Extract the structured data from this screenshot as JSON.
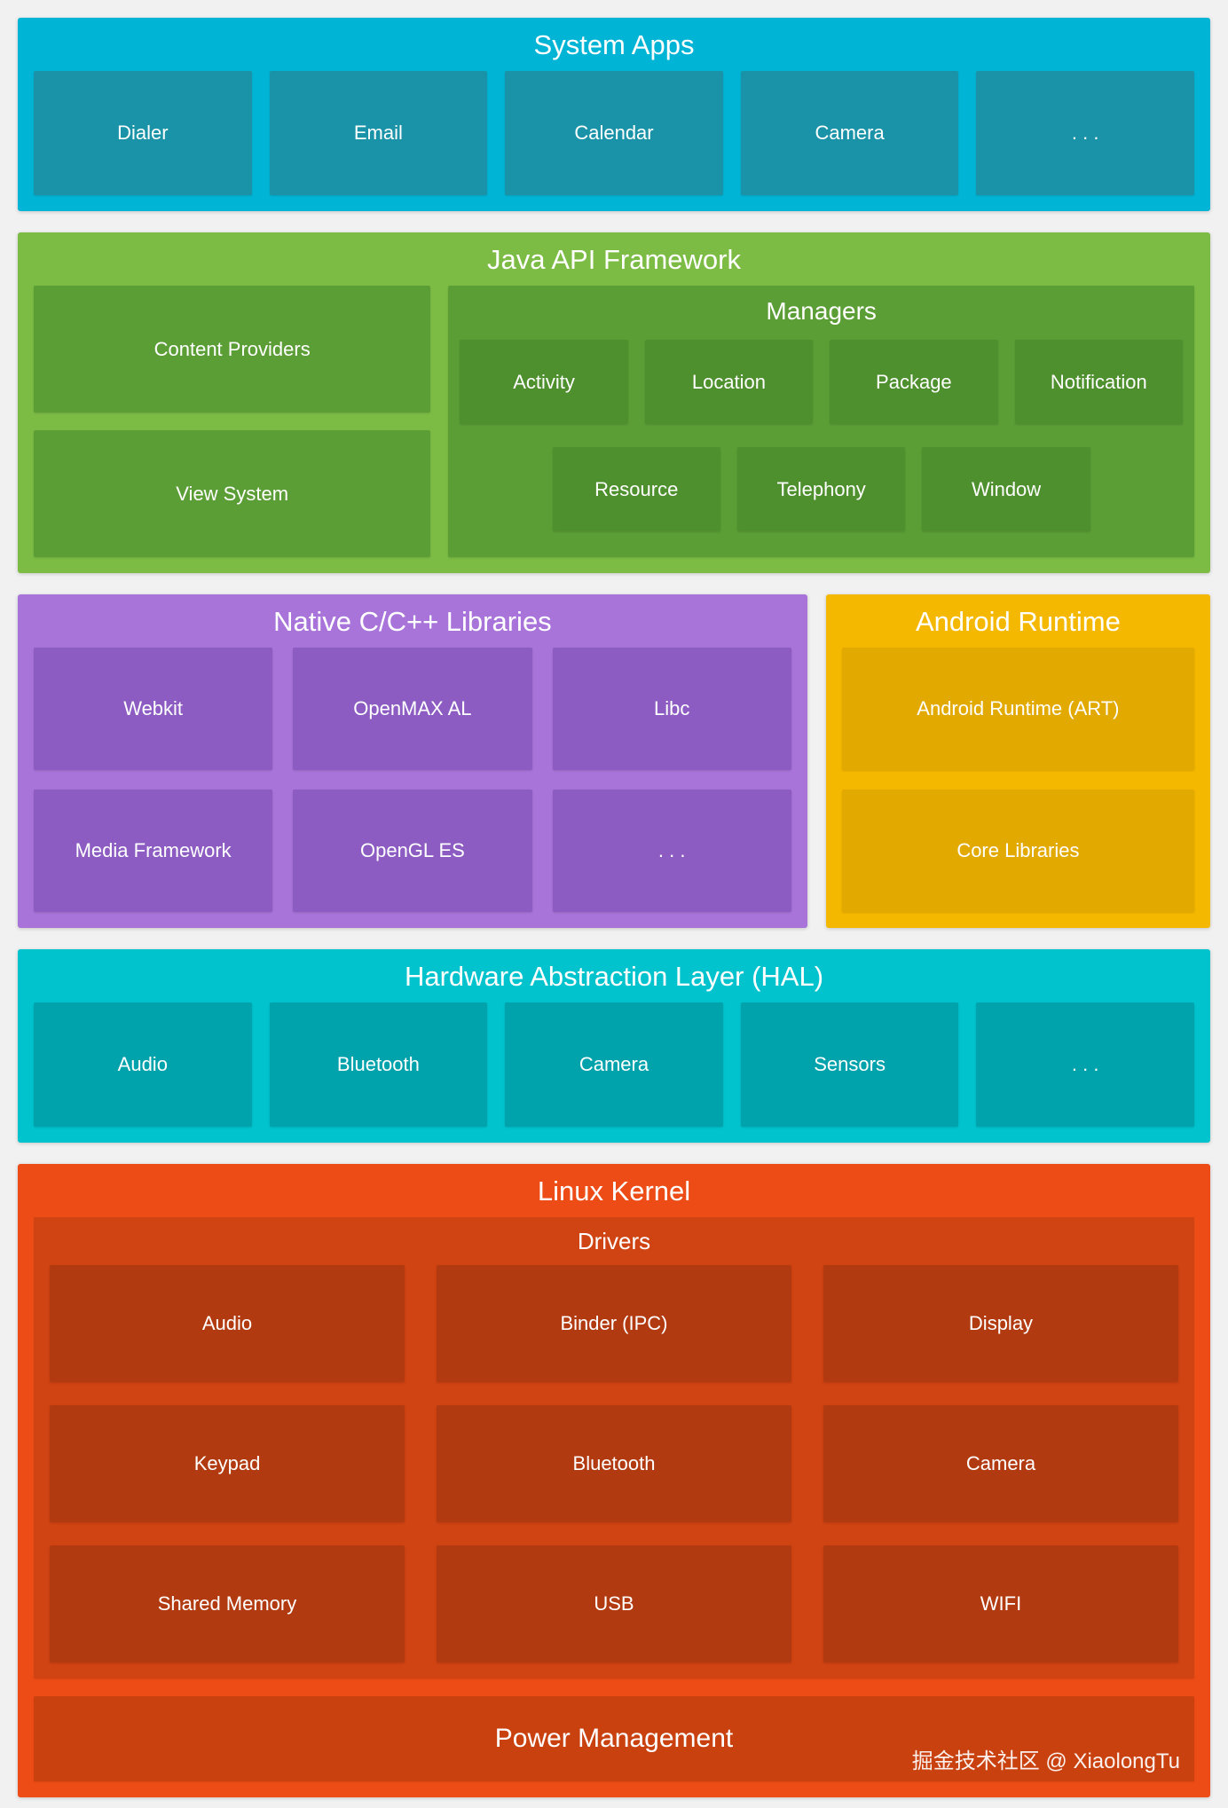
{
  "sections": {
    "system_apps": {
      "title": "System Apps",
      "items": [
        "Dialer",
        "Email",
        "Calendar",
        "Camera",
        ". . ."
      ]
    },
    "java_api": {
      "title": "Java API Framework",
      "left_items": [
        "Content Providers",
        "View System"
      ],
      "managers": {
        "title": "Managers",
        "row1": [
          "Activity",
          "Location",
          "Package",
          "Notification"
        ],
        "row2": [
          "Resource",
          "Telephony",
          "Window"
        ]
      }
    },
    "native_libs": {
      "title": "Native C/C++ Libraries",
      "items": [
        "Webkit",
        "OpenMAX AL",
        "Libc",
        "Media Framework",
        "OpenGL ES",
        ". . ."
      ]
    },
    "android_runtime": {
      "title": "Android Runtime",
      "items": [
        "Android Runtime (ART)",
        "Core Libraries"
      ]
    },
    "hal": {
      "title": "Hardware Abstraction Layer (HAL)",
      "items": [
        "Audio",
        "Bluetooth",
        "Camera",
        "Sensors",
        ". . ."
      ]
    },
    "linux_kernel": {
      "title": "Linux Kernel",
      "drivers": {
        "title": "Drivers",
        "items": [
          "Audio",
          "Binder (IPC)",
          "Display",
          "Keypad",
          "Bluetooth",
          "Camera",
          "Shared Memory",
          "USB",
          "WIFI"
        ]
      },
      "power": "Power Management"
    },
    "watermark": "掘金技术社区 @ XiaolongTu"
  },
  "colors": {
    "page-bg": "#f1f1f1",
    "sysapps-bg": "#00b4d5",
    "sysapps-box": "#1a93a8",
    "java-bg": "#7cbc45",
    "java-box": "#5c9e36",
    "java-chip": "#4e8f2e",
    "native-bg": "#a874d9",
    "native-box": "#8c5cc2",
    "runtime-bg": "#f5b800",
    "runtime-box": "#e2a900",
    "hal-bg": "#00c3cd",
    "hal-box": "#00a2ab",
    "kernel-bg": "#ee4c16",
    "kernel-panel": "#d04312",
    "kernel-chip": "#b23a10",
    "kernel-power": "#c9410f",
    "text": "#ffffff"
  }
}
